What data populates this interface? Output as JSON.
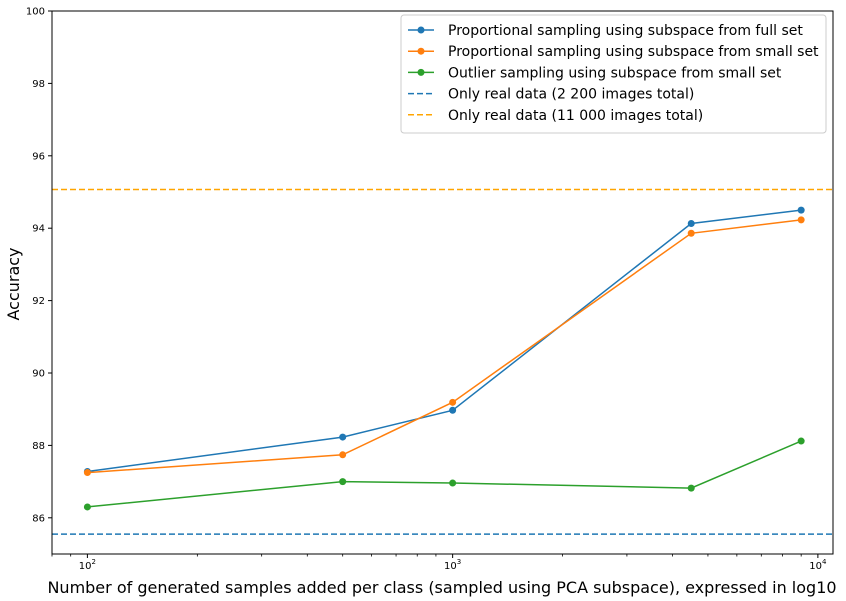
{
  "chart_data": {
    "type": "line",
    "title": "",
    "xlabel": "Number of generated samples added per class (sampled using PCA subspace), expressed in log10",
    "ylabel": "Accuracy",
    "xscale": "log",
    "xlim": [
      80,
      11000
    ],
    "ylim": [
      85,
      100
    ],
    "grid": false,
    "legend_position": "top-right",
    "yticks": [
      86,
      88,
      90,
      92,
      94,
      96,
      98,
      100
    ],
    "xticks": [
      {
        "value": 100,
        "base": "10",
        "exp": "2"
      },
      {
        "value": 1000,
        "base": "10",
        "exp": "3"
      },
      {
        "value": 10000,
        "base": "10",
        "exp": "4"
      }
    ],
    "series": [
      {
        "name": "Proportional sampling using subspace from full set",
        "color": "#1f77b4",
        "style": "solid-marker",
        "x": [
          100,
          500,
          1000,
          4500,
          9000
        ],
        "y": [
          87.28,
          88.23,
          88.97,
          94.13,
          94.5
        ]
      },
      {
        "name": "Proportional sampling using subspace from small set",
        "color": "#ff7f0e",
        "style": "solid-marker",
        "x": [
          100,
          500,
          1000,
          4500,
          9000
        ],
        "y": [
          87.25,
          87.74,
          89.19,
          93.86,
          94.23
        ]
      },
      {
        "name": "Outlier sampling using subspace from small set",
        "color": "#2ca02c",
        "style": "solid-marker",
        "x": [
          100,
          500,
          1000,
          4500,
          9000
        ],
        "y": [
          86.3,
          87.0,
          86.96,
          86.82,
          88.12
        ]
      },
      {
        "name": "Only real data (2 200 images total)",
        "color": "#1f77b4",
        "style": "dashed",
        "hline": 85.55
      },
      {
        "name": "Only real data (11 000 images total)",
        "color": "#ffa500",
        "style": "dashed",
        "hline": 95.07
      }
    ]
  }
}
